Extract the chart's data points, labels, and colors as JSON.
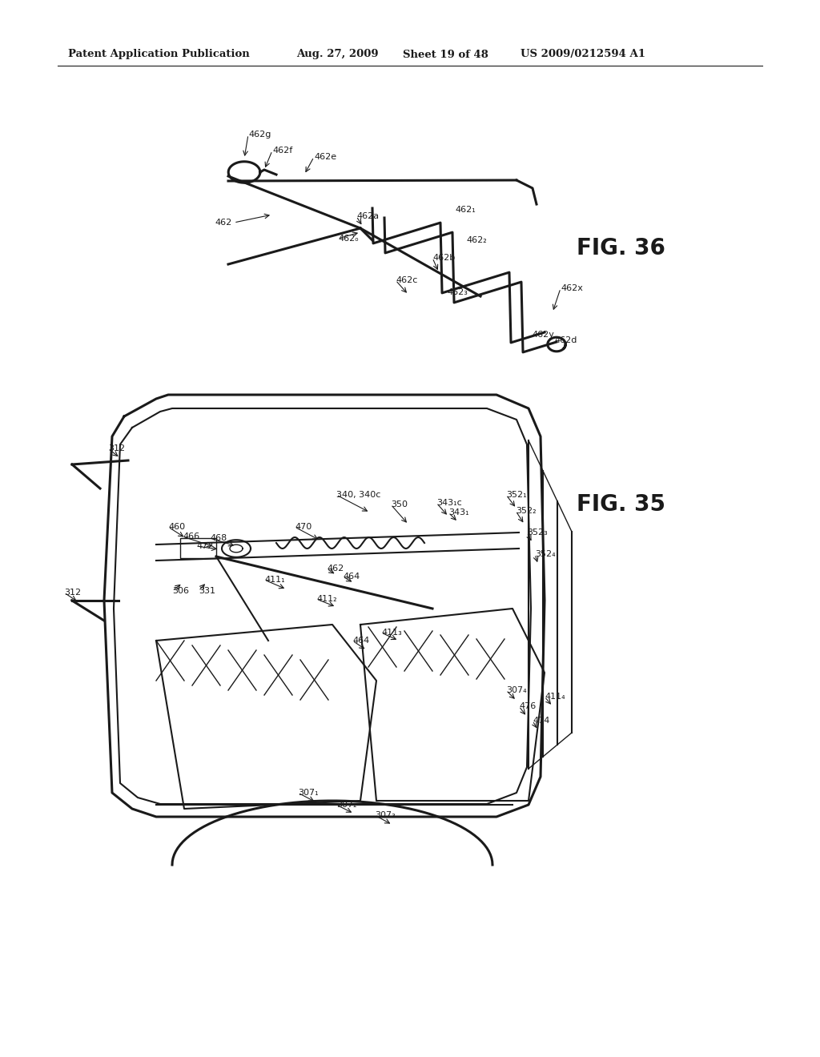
{
  "background_color": "#ffffff",
  "header_text": "Patent Application Publication",
  "header_date": "Aug. 27, 2009",
  "header_sheet": "Sheet 19 of 48",
  "header_patent": "US 2009/0212594 A1",
  "fig36_label": "FIG. 36",
  "fig35_label": "FIG. 35",
  "line_color": "#1a1a1a",
  "ann_fontsize": 8.0,
  "header_fontsize": 9.5,
  "fig_label_fontsize": 20
}
